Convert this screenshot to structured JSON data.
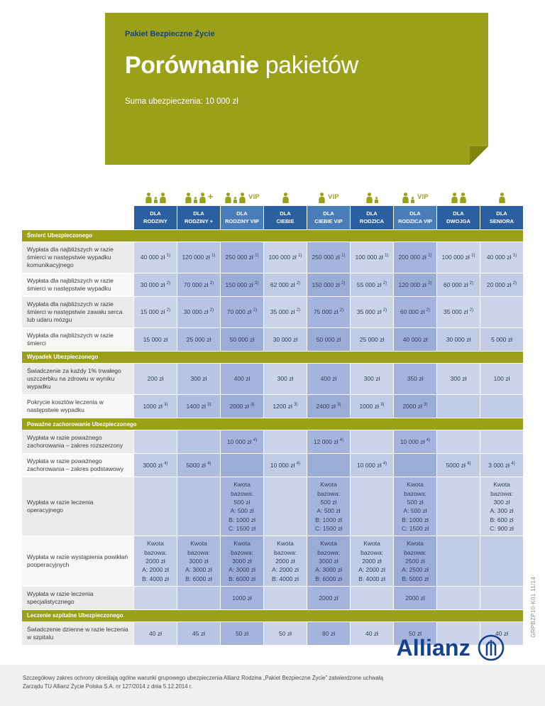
{
  "colors": {
    "olive": "#9ba019",
    "olive_dark": "#7f850f",
    "navy": "#16418c",
    "header_blue": "#2c5f9f",
    "header_blue_vip": "#4b7cba",
    "col_light": "#cbd4eb",
    "col_light_alt": "#c1cbe6",
    "col_medium": "#b7c4e5",
    "col_medium_alt": "#adbbe0",
    "col_dark": "#a5b4dd",
    "col_dark_alt": "#9bacd7",
    "label_gray": "#ebebec",
    "label_white": "#f8f8f9",
    "cell_text": "#32405a"
  },
  "header": {
    "kicker": "Pakiet Bezpieczne Życie",
    "title_bold": "Porównanie",
    "title_rest": " pakietów",
    "subtitle": "Suma ubezpieczenia: 10 000 zł"
  },
  "columns": [
    {
      "line1": "DLA",
      "line2": "RODZINY",
      "icon": "family",
      "suffix": "",
      "shade": "light"
    },
    {
      "line1": "DLA",
      "line2": "RODZINY +",
      "icon": "family",
      "suffix": "+",
      "shade": "medium"
    },
    {
      "line1": "DLA",
      "line2": "RODZINY VIP",
      "icon": "family",
      "suffix": "VIP",
      "shade": "dark"
    },
    {
      "line1": "DLA",
      "line2": "CIEBIE",
      "icon": "single",
      "suffix": "",
      "shade": "light"
    },
    {
      "line1": "DLA",
      "line2": "CIEBIE VIP",
      "icon": "single",
      "suffix": "VIP",
      "shade": "dark"
    },
    {
      "line1": "DLA",
      "line2": "RODZICA",
      "icon": "parent",
      "suffix": "",
      "shade": "light"
    },
    {
      "line1": "DLA",
      "line2": "RODZICA VIP",
      "icon": "parent",
      "suffix": "VIP",
      "shade": "dark"
    },
    {
      "line1": "DLA",
      "line2": "DWOJGA",
      "icon": "couple",
      "suffix": "",
      "shade": "light"
    },
    {
      "line1": "DLA",
      "line2": "SENIORA",
      "icon": "single",
      "suffix": "",
      "shade": "light"
    }
  ],
  "sections": [
    {
      "title": "Śmierć Ubezpieczonego",
      "rows": [
        {
          "label": "Wypłata dla najbliższych w razie śmierci w następstwie wypadku komunikacyjnego",
          "values": [
            "40 000 zł ^1)",
            "120 000 zł ^1)",
            "250 000 zł ^1)",
            "100 000 zł ^1)",
            "250 000 zł ^1)",
            "100 000 zł ^1)",
            "200 000 zł ^1)",
            "100 000 zł ^1)",
            "40 000 zł ^1)"
          ]
        },
        {
          "label": "Wypłata dla najbliższych w razie śmierci w następstwie wypadku",
          "values": [
            "30 000 zł ^2)",
            "70 000 zł ^2)",
            "150 000 zł ^2)",
            "62 000 zł ^2)",
            "150 000 zł ^2)",
            "55 000 zł ^2)",
            "120 000 zł ^2)",
            "60 000 zł ^2)",
            "20 000 zł ^2)"
          ]
        },
        {
          "label": "Wypłata dla najbliższych w razie śmierci w następstwie zawału serca lub udaru mózgu",
          "values": [
            "15 000 zł ^2)",
            "30 000 zł ^2)",
            "70 000 zł ^2)",
            "35 000 zł ^2)",
            "75 000 zł ^2)",
            "35 000 zł ^2)",
            "60 000 zł ^2)",
            "35 000 zł ^2)",
            ""
          ]
        },
        {
          "label": "Wypłata dla najbliższych w razie śmierci",
          "values": [
            "15 000 zł",
            "25 000 zł",
            "50 000 zł",
            "30 000 zł",
            "50 000 zł",
            "25 000 zł",
            "40 000 zł",
            "30 000 zł",
            "5 000 zł"
          ]
        }
      ]
    },
    {
      "title": "Wypadek Ubezpieczonego",
      "rows": [
        {
          "label": "Świadczenie za każdy 1% trwałego uszczerbku na zdrowiu w wyniku wypadku",
          "values": [
            "200 zł",
            "300 zł",
            "400 zł",
            "300 zł",
            "400 zł",
            "300 zł",
            "350 zł",
            "300 zł",
            "100 zł"
          ]
        },
        {
          "label": "Pokrycie kosztów leczenia w następstwie wypadku",
          "values": [
            "1000 zł ^3)",
            "1400 zł ^3)",
            "2000 zł ^3)",
            "1200 zł ^3)",
            "2400 zł ^3)",
            "1000 zł ^3)",
            "2000 zł ^3)",
            "",
            ""
          ]
        }
      ]
    },
    {
      "title": "Poważne zachorowanie Ubezpieczonego",
      "rows": [
        {
          "label": "Wypłata w razie poważnego zachorowania – zakres rozszerzony",
          "values": [
            "",
            "",
            "10 000 zł ^4)",
            "",
            "12 000 zł ^4)",
            "",
            "10 000 zł ^4)",
            "",
            ""
          ]
        },
        {
          "label": "Wypłata w razie poważnego zachorowania – zakres podstawowy",
          "values": [
            "3000 zł ^4)",
            "5000 zł ^4)",
            "",
            "10 000 zł ^4)",
            "",
            "10 000 zł ^4)",
            "",
            "5000 zł ^4)",
            "3 000 zł ^4)"
          ]
        },
        {
          "label": "Wypłata w razie leczenia operacyjnego",
          "values": [
            "",
            "",
            "Kwota\nbazowa:\n500 zł\nA: 500 zł\nB: 1000 zł\nC: 1500 zł",
            "",
            "Kwota\nbazowa:\n500 zł\nA: 500 zł\nB: 1000 zł\nC: 1500 zł",
            "",
            "Kwota\nbazowa:\n500 zł\nA: 500 zł\nB: 1000 zł\nC: 1500 zł",
            "",
            "Kwota\nbazowa:\n300 zł\nA: 300 zł\nB: 600 zł\nC: 900 zł"
          ]
        },
        {
          "label": "Wypłata w razie wystąpienia powikłań pooperacyjnych",
          "values": [
            "Kwota\nbazowa:\n2000 zł\nA: 2000 zł\nB: 4000 zł",
            "Kwota\nbazowa:\n3000 zł\nA: 3000 zł\nB: 6000 zł",
            "Kwota\nbazowa:\n3000 zł\nA: 3000 zł\nB: 6000 zł",
            "Kwota\nbazowa:\n2000 zł\nA: 2000 zł\nB: 4000 zł",
            "Kwota\nbazowa:\n3000 zł\nA: 3000 zł\nB: 6000 zł",
            "Kwota\nbazowa:\n2000 zł\nA: 2000 zł\nB: 4000 zł",
            "Kwota\nbazowa:\n2500 zł\nA: 2500 zł\nB: 5000 zł",
            "",
            ""
          ]
        },
        {
          "label": "Wypłata w razie leczenia specjalistycznego",
          "values": [
            "",
            "",
            "1000 zł",
            "",
            "2000 zł",
            "",
            "2000 zł",
            "",
            ""
          ]
        }
      ]
    },
    {
      "title": "Leczenie szpitalne Ubezpieczonego",
      "rows": [
        {
          "label": "Świadczenie dzienne w razie leczenia w szpitalu",
          "values": [
            "40 zł",
            "45 zł",
            "50 zł",
            "50 zł",
            "80 zł",
            "40 zł",
            "50 zł",
            "",
            "40 zł"
          ]
        }
      ]
    }
  ],
  "side_code": "GRPBZP10-K01 11/14",
  "logo": {
    "wordmark": "Allianz"
  },
  "footer": {
    "text": "Szczegółowy zakres ochrony określają ogólne warunki grupowego ubezpieczenia Allianz Rodzina „Pakiet Bezpieczne Życie” zatwierdzone uchwałą Zarządu TU Allianz Życie Polska S.A. nr 127/2014 z dnia 5.12.2014 r."
  }
}
